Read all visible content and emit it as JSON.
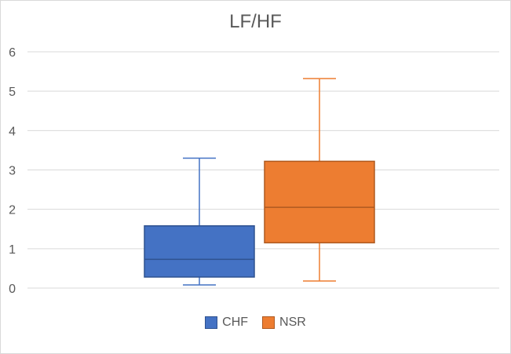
{
  "chart_data": {
    "type": "boxplot",
    "title": "LF/HF",
    "ylim": [
      0,
      6
    ],
    "yticks": [
      0,
      1,
      2,
      3,
      4,
      5,
      6
    ],
    "grid": true,
    "legend_position": "bottom",
    "series": [
      {
        "name": "CHF",
        "color": "#4472c4",
        "edge": "#2f528f",
        "min": 0.08,
        "q1": 0.28,
        "median": 0.73,
        "q3": 1.58,
        "max": 3.3
      },
      {
        "name": "NSR",
        "color": "#ed7d31",
        "edge": "#ae5a21",
        "min": 0.18,
        "q1": 1.15,
        "median": 2.05,
        "q3": 3.22,
        "max": 5.32
      }
    ]
  }
}
